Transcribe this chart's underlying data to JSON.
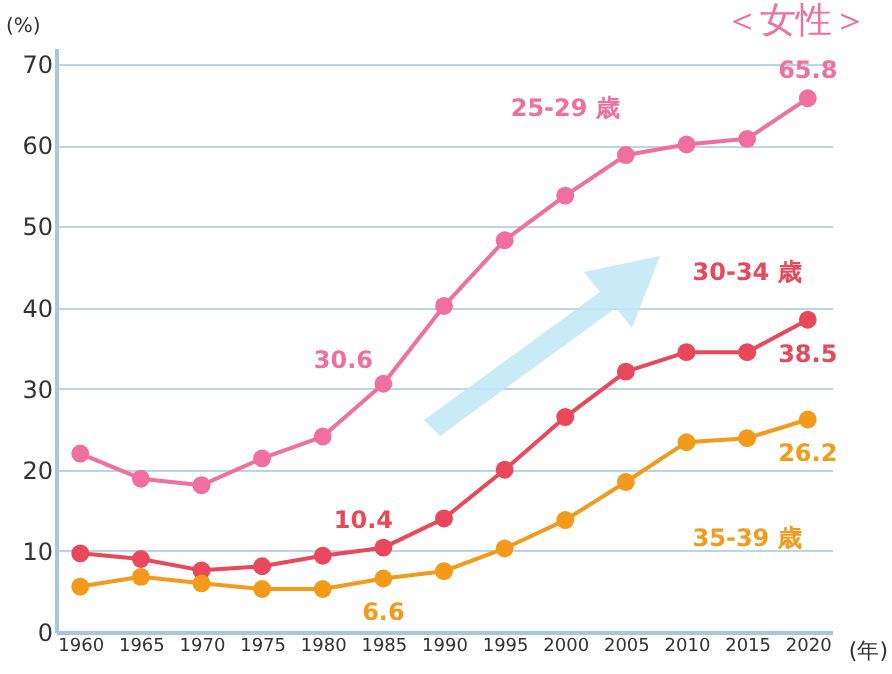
{
  "chart_data": {
    "type": "line",
    "title": "＜女性＞",
    "xlabel": "(年)",
    "ylabel": "(%)",
    "categories": [
      "1960",
      "1965",
      "1970",
      "1975",
      "1980",
      "1985",
      "1990",
      "1995",
      "2000",
      "2005",
      "2010",
      "2015",
      "2020"
    ],
    "series": [
      {
        "name": "25-29 歳",
        "color": "#f06ea0",
        "values": [
          22.0,
          18.9,
          18.1,
          21.4,
          24.1,
          30.6,
          40.2,
          48.3,
          53.8,
          58.8,
          60.1,
          60.8,
          65.8
        ],
        "value_labels": [
          null,
          null,
          null,
          null,
          null,
          "30.6",
          null,
          null,
          null,
          null,
          null,
          null,
          "65.8"
        ]
      },
      {
        "name": "30-34 歳",
        "color": "#e9485a",
        "values": [
          9.7,
          9.0,
          7.6,
          8.1,
          9.4,
          10.4,
          14.0,
          20.0,
          26.5,
          32.1,
          34.5,
          34.5,
          38.5
        ],
        "value_labels": [
          null,
          null,
          null,
          null,
          null,
          "10.4",
          null,
          null,
          null,
          null,
          null,
          null,
          "38.5"
        ]
      },
      {
        "name": "35-39 歳",
        "color": "#f39a1b",
        "values": [
          5.6,
          6.8,
          6.0,
          5.3,
          5.3,
          6.6,
          7.5,
          10.3,
          13.8,
          18.5,
          23.4,
          23.9,
          26.2
        ],
        "value_labels": [
          null,
          null,
          null,
          null,
          null,
          "6.6",
          null,
          null,
          null,
          null,
          null,
          null,
          "26.2"
        ]
      }
    ],
    "ylim": [
      0,
      72
    ],
    "yticks": [
      0,
      10,
      20,
      30,
      40,
      50,
      60,
      70
    ],
    "grid": "y",
    "marker": "circle"
  }
}
